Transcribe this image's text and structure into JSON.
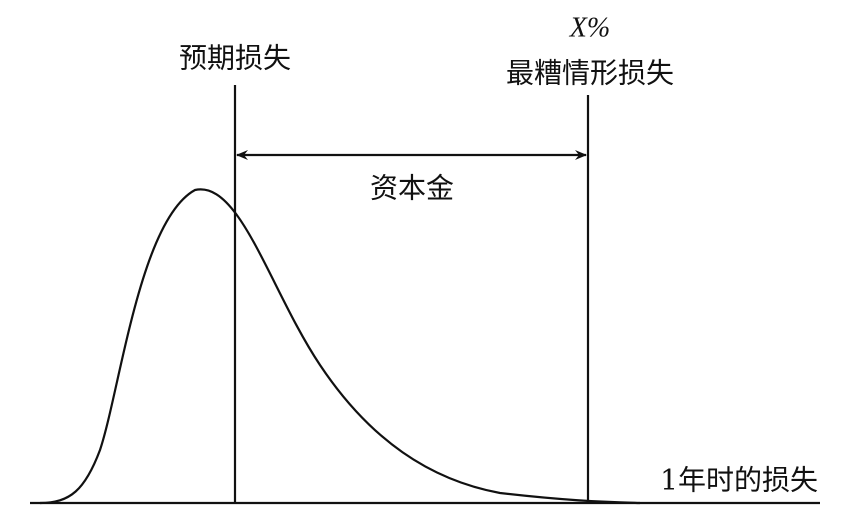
{
  "labels": {
    "expected_loss": "预期损失",
    "percentile": "X%",
    "worst_case_loss": "最糟情形损失",
    "capital": "资本金",
    "axis_label": "1年时的损失"
  }
}
